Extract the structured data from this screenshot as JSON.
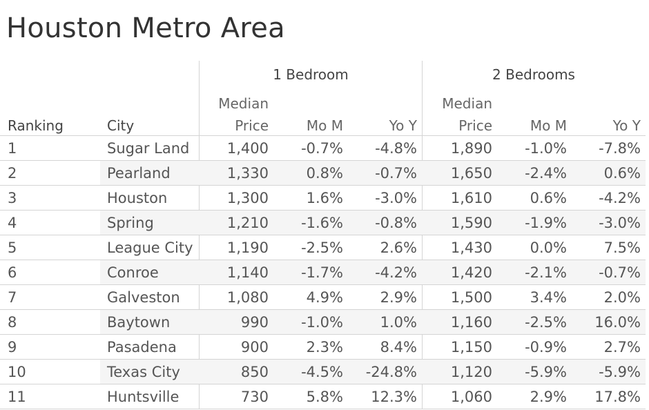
{
  "title": "Houston Metro Area",
  "groups": [
    "1 Bedroom",
    "2 Bedrooms"
  ],
  "headers": {
    "ranking": "Ranking",
    "city": "City",
    "median_line1": "Median",
    "price": "Price",
    "mom": "Mo M",
    "yoy": "Yo Y"
  },
  "chart_data": {
    "type": "table",
    "title": "Houston Metro Area",
    "column_groups": [
      "1 Bedroom",
      "2 Bedrooms"
    ],
    "columns": [
      "Ranking",
      "City",
      "Median Price",
      "Mo M",
      "Yo Y",
      "Median Price",
      "Mo M",
      "Yo Y"
    ],
    "rows": [
      [
        "1",
        "Sugar Land",
        "1,400",
        "-0.7%",
        "-4.8%",
        "1,890",
        "-1.0%",
        "-7.8%"
      ],
      [
        "2",
        "Pearland",
        "1,330",
        "0.8%",
        "-0.7%",
        "1,650",
        "-2.4%",
        "0.6%"
      ],
      [
        "3",
        "Houston",
        "1,300",
        "1.6%",
        "-3.0%",
        "1,610",
        "0.6%",
        "-4.2%"
      ],
      [
        "4",
        "Spring",
        "1,210",
        "-1.6%",
        "-0.8%",
        "1,590",
        "-1.9%",
        "-3.0%"
      ],
      [
        "5",
        "League City",
        "1,190",
        "-2.5%",
        "2.6%",
        "1,430",
        "0.0%",
        "7.5%"
      ],
      [
        "6",
        "Conroe",
        "1,140",
        "-1.7%",
        "-4.2%",
        "1,420",
        "-2.1%",
        "-0.7%"
      ],
      [
        "7",
        "Galveston",
        "1,080",
        "4.9%",
        "2.9%",
        "1,500",
        "3.4%",
        "2.0%"
      ],
      [
        "8",
        "Baytown",
        "990",
        "-1.0%",
        "1.0%",
        "1,160",
        "-2.5%",
        "16.0%"
      ],
      [
        "9",
        "Pasadena",
        "900",
        "2.3%",
        "8.4%",
        "1,150",
        "-0.9%",
        "2.7%"
      ],
      [
        "10",
        "Texas City",
        "850",
        "-4.5%",
        "-24.8%",
        "1,120",
        "-5.9%",
        "-5.9%"
      ],
      [
        "11",
        "Huntsville",
        "730",
        "5.8%",
        "12.3%",
        "1,060",
        "2.9%",
        "17.8%"
      ]
    ]
  }
}
